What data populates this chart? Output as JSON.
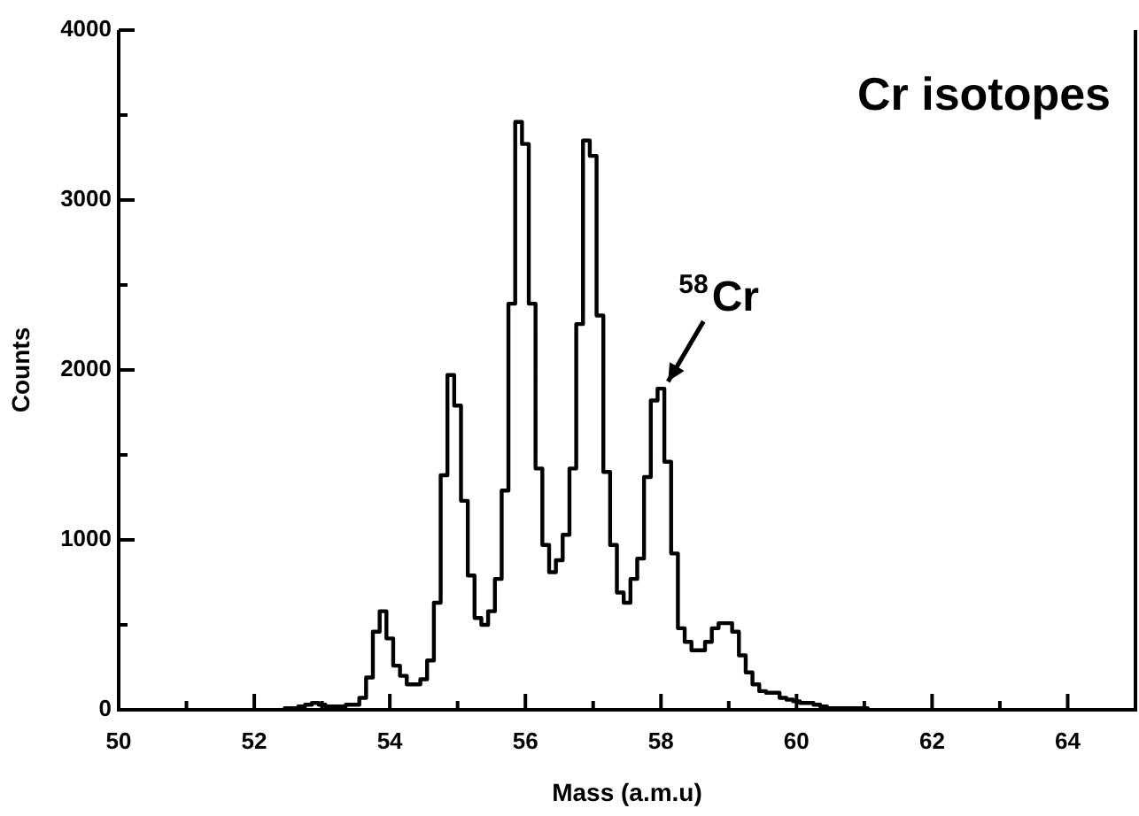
{
  "chart_data": {
    "type": "histogram",
    "xlabel": "Mass (a.m.u)",
    "ylabel": "Counts",
    "annotations": [
      "Cr isotopes",
      {
        "text": "$^{58}$Cr",
        "x": 58,
        "y": 1890
      }
    ],
    "bins": [
      52.45,
      52.55,
      52.65,
      52.75,
      52.85,
      52.95,
      53.05,
      53.15,
      53.25,
      53.35,
      53.45,
      53.55,
      53.65,
      53.75,
      53.85,
      53.95,
      54.05,
      54.15,
      54.25,
      54.35,
      54.45,
      54.55,
      54.65,
      54.75,
      54.85,
      54.95,
      55.05,
      55.15,
      55.25,
      55.35,
      55.45,
      55.55,
      55.65,
      55.75,
      55.85,
      55.95,
      56.05,
      56.15,
      56.25,
      56.35,
      56.45,
      56.55,
      56.65,
      56.75,
      56.85,
      56.95,
      57.05,
      57.15,
      57.25,
      57.35,
      57.45,
      57.55,
      57.65,
      57.75,
      57.85,
      57.95,
      58.05,
      58.15,
      58.25,
      58.35,
      58.45,
      58.55,
      58.65,
      58.75,
      58.85,
      58.95,
      59.05,
      59.15,
      59.25,
      59.35,
      59.45,
      59.55,
      59.65,
      59.75,
      59.85,
      59.95,
      60.05,
      60.15,
      60.25,
      60.35,
      60.45,
      60.55,
      60.65,
      60.75,
      60.85,
      60.95,
      61.05
    ],
    "values": [
      10,
      10,
      20,
      30,
      40,
      30,
      20,
      20,
      20,
      30,
      30,
      70,
      190,
      460,
      580,
      420,
      260,
      200,
      150,
      150,
      180,
      290,
      630,
      1380,
      1970,
      1790,
      1230,
      790,
      540,
      500,
      580,
      770,
      1290,
      2390,
      3460,
      3330,
      2390,
      1420,
      970,
      810,
      880,
      1030,
      1420,
      2270,
      3350,
      3260,
      2320,
      1400,
      970,
      690,
      630,
      770,
      890,
      1370,
      1820,
      1890,
      1460,
      920,
      480,
      400,
      350,
      350,
      400,
      480,
      510,
      510,
      460,
      320,
      220,
      150,
      110,
      100,
      100,
      70,
      60,
      50,
      40,
      40,
      30,
      20,
      10,
      10,
      10,
      10,
      10,
      10
    ],
    "color": "#000000",
    "xlim": [
      50,
      65
    ],
    "xticks": [
      50,
      {
        "value": 51,
        "label": null
      },
      52,
      {
        "value": 53,
        "label": null
      },
      54,
      {
        "value": 55,
        "label": null
      },
      56,
      {
        "value": 57,
        "label": null
      },
      58,
      {
        "value": 59,
        "label": null
      },
      60,
      {
        "value": 61,
        "label": null
      },
      62,
      {
        "value": 63,
        "label": null
      },
      64
    ],
    "ylim": [
      0,
      4000
    ],
    "yticks": [
      0,
      {
        "value": 500,
        "label": null
      },
      1000,
      {
        "value": 1500,
        "label": null
      },
      2000,
      {
        "value": 2500,
        "label": null
      },
      3000,
      {
        "value": 3500,
        "label": null
      },
      4000
    ],
    "grid": false,
    "legend": false
  }
}
